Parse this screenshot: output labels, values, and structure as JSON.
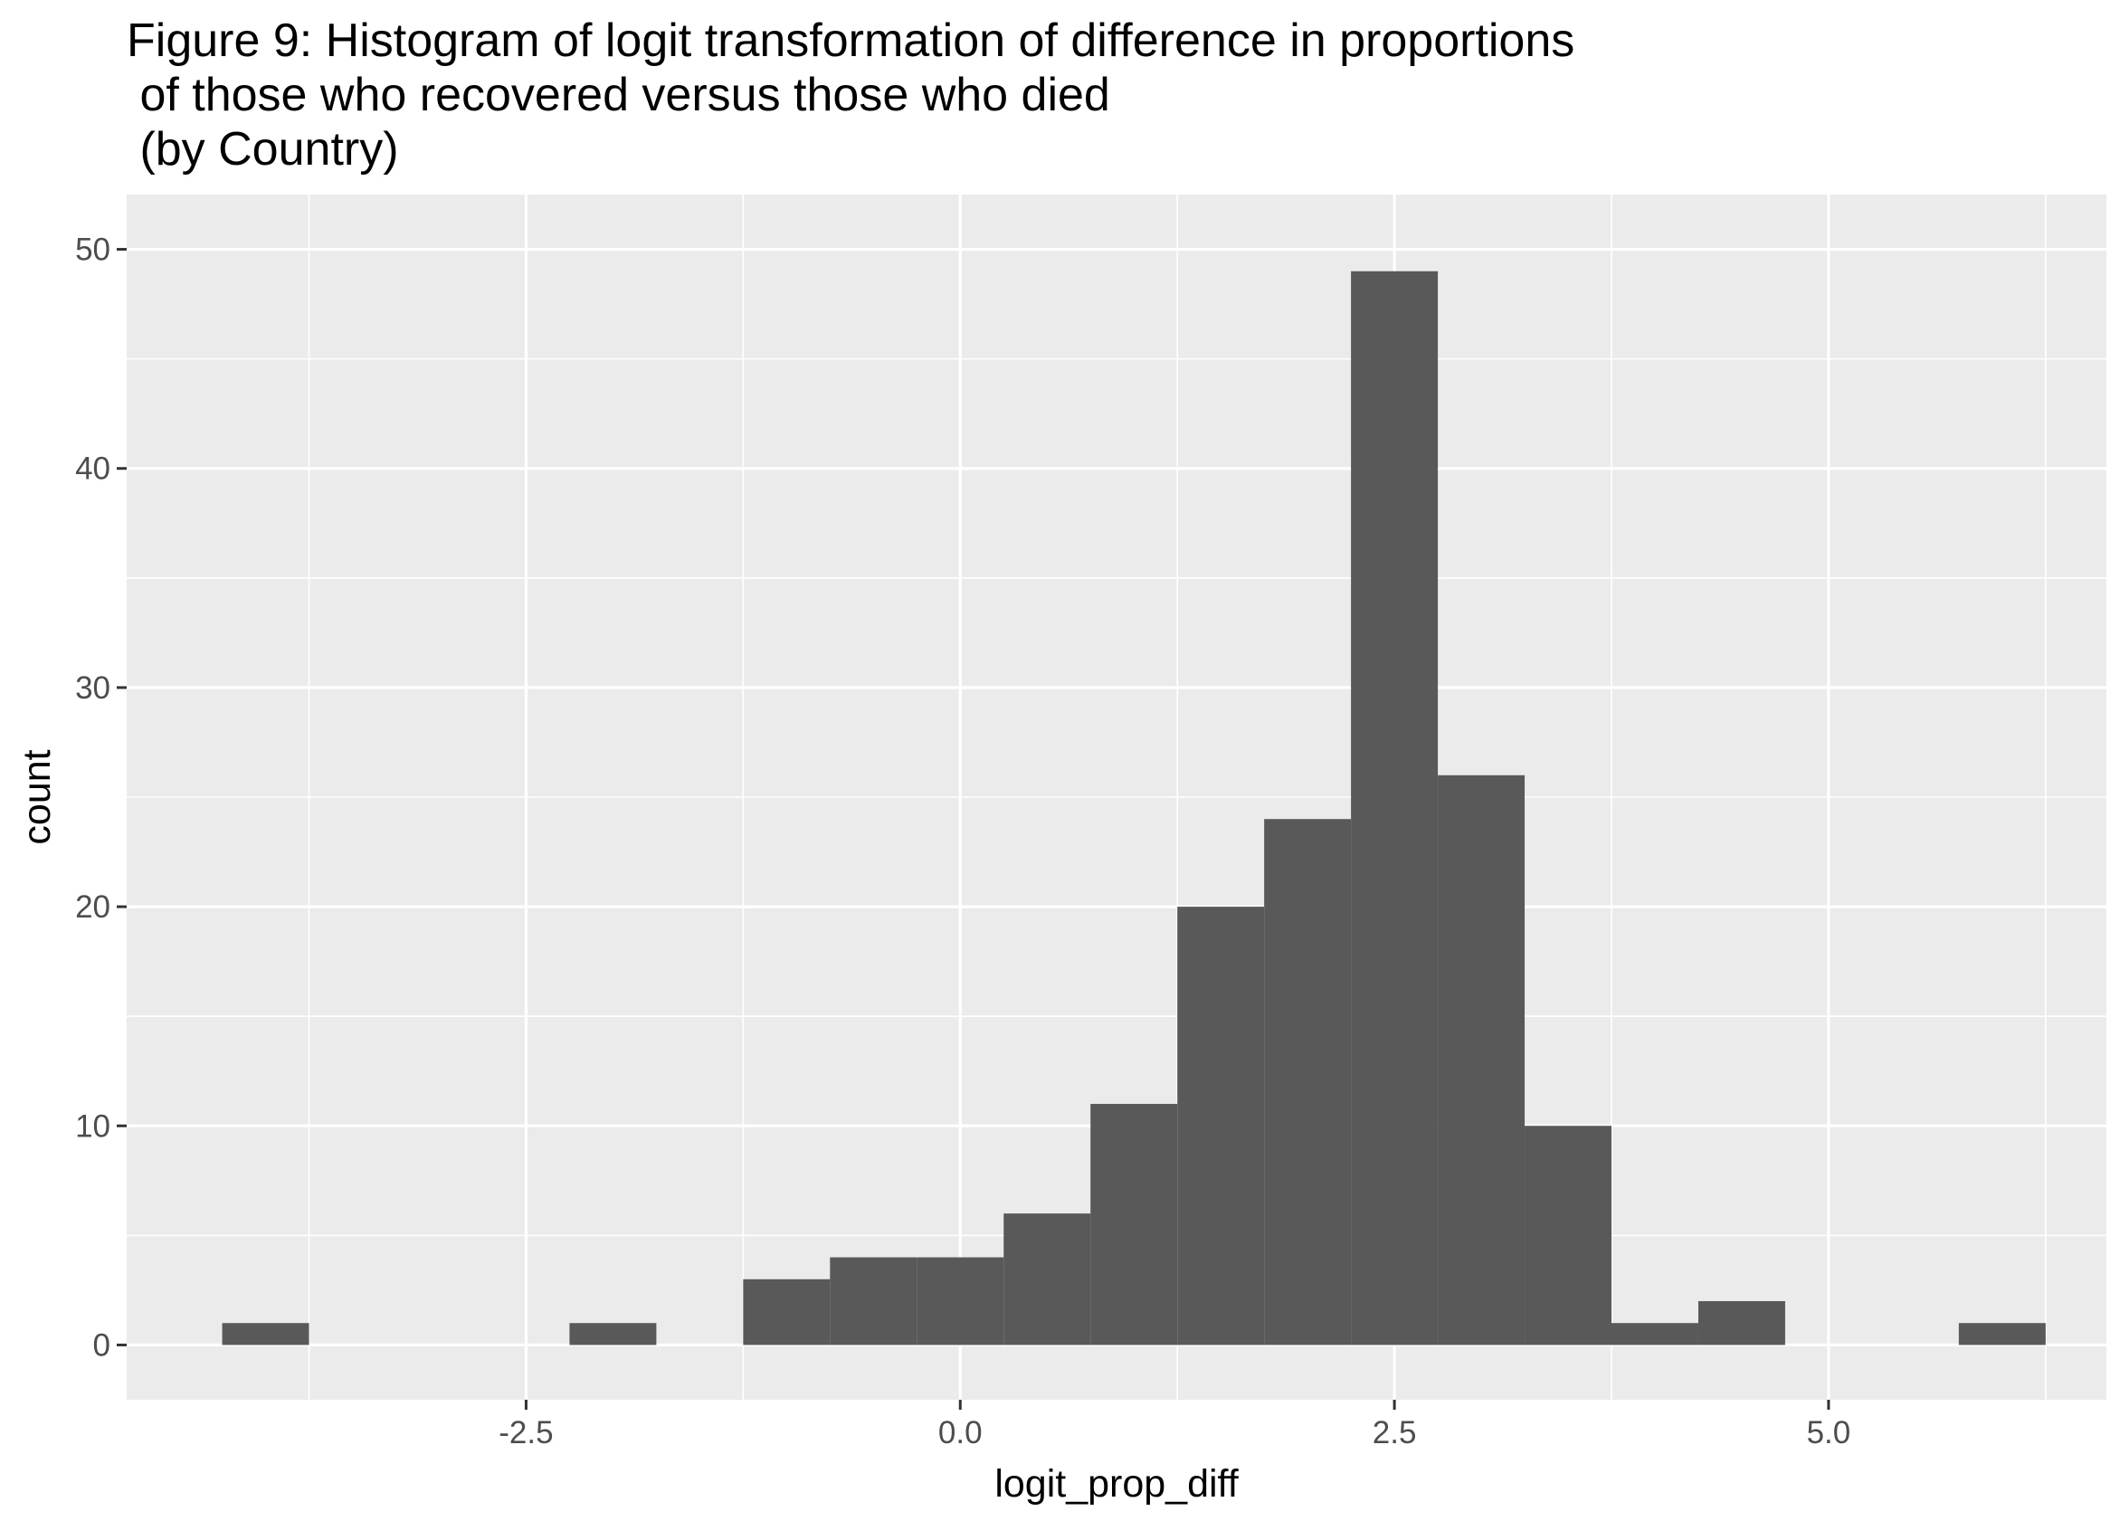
{
  "chart_data": {
    "type": "bar",
    "title_lines": [
      "Figure 9: Histogram of logit transformation of difference in proportions",
      " of those who recovered versus those who died",
      " (by Country)"
    ],
    "xlabel": "logit_prop_diff",
    "ylabel": "count",
    "xlim": [
      -4.8,
      6.6
    ],
    "ylim": [
      -2.5,
      52.5
    ],
    "x_ticks": [
      -2.5,
      0.0,
      2.5,
      5.0
    ],
    "x_tick_labels": [
      "-2.5",
      "0.0",
      "2.5",
      "5.0"
    ],
    "y_ticks": [
      0,
      10,
      20,
      30,
      40,
      50
    ],
    "y_tick_labels": [
      "0",
      "10",
      "20",
      "30",
      "40",
      "50"
    ],
    "x_minor_grid": [
      -3.75,
      -1.25,
      1.25,
      3.75,
      6.25
    ],
    "y_minor_grid": [
      5,
      15,
      25,
      35,
      45
    ],
    "grid": true,
    "bin_width": 0.5,
    "bins": [
      {
        "x0": -4.25,
        "x1": -3.75,
        "count": 1
      },
      {
        "x0": -3.75,
        "x1": -3.25,
        "count": 0
      },
      {
        "x0": -3.25,
        "x1": -2.75,
        "count": 0
      },
      {
        "x0": -2.75,
        "x1": -2.25,
        "count": 0
      },
      {
        "x0": -2.25,
        "x1": -1.75,
        "count": 1
      },
      {
        "x0": -1.75,
        "x1": -1.25,
        "count": 0
      },
      {
        "x0": -1.25,
        "x1": -0.75,
        "count": 3
      },
      {
        "x0": -0.75,
        "x1": -0.25,
        "count": 4
      },
      {
        "x0": -0.25,
        "x1": 0.25,
        "count": 4
      },
      {
        "x0": 0.25,
        "x1": 0.75,
        "count": 6
      },
      {
        "x0": 0.75,
        "x1": 1.25,
        "count": 11
      },
      {
        "x0": 1.25,
        "x1": 1.75,
        "count": 20
      },
      {
        "x0": 1.75,
        "x1": 2.25,
        "count": 24
      },
      {
        "x0": 2.25,
        "x1": 2.75,
        "count": 49
      },
      {
        "x0": 2.75,
        "x1": 3.25,
        "count": 26
      },
      {
        "x0": 3.25,
        "x1": 3.75,
        "count": 10
      },
      {
        "x0": 3.75,
        "x1": 4.25,
        "count": 1
      },
      {
        "x0": 4.25,
        "x1": 4.75,
        "count": 2
      },
      {
        "x0": 4.75,
        "x1": 5.25,
        "count": 0
      },
      {
        "x0": 5.25,
        "x1": 5.75,
        "count": 0
      },
      {
        "x0": 5.75,
        "x1": 6.25,
        "count": 1
      }
    ],
    "colors": {
      "bar_fill": "#595959",
      "panel_background": "#EBEBEB",
      "grid_major": "#FFFFFF",
      "grid_minor": "#FFFFFF",
      "tick_label": "#4D4D4D",
      "tick_mark": "#333333"
    }
  }
}
